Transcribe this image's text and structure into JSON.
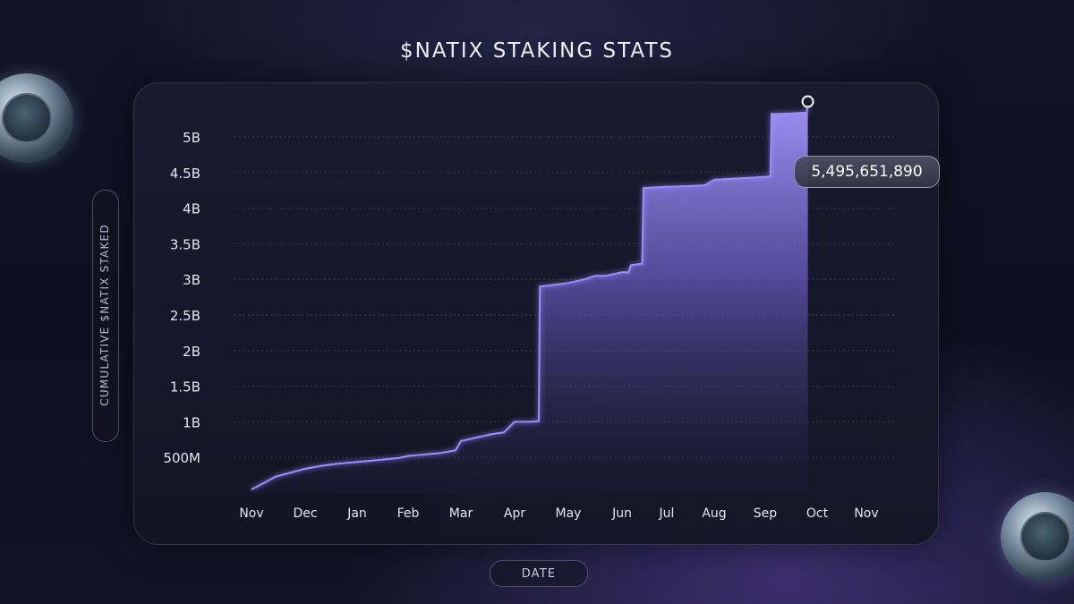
{
  "chart_data": {
    "type": "area",
    "title": "$NATIX STAKING STATS",
    "xlabel": "DATE",
    "ylabel": "CUMULATIVE $NATIX STAKED",
    "x_ticks": [
      "Nov",
      "Dec",
      "Jan",
      "Feb",
      "Mar",
      "Apr",
      "May",
      "Jun",
      "Jul",
      "Aug",
      "Sep",
      "Oct",
      "Nov"
    ],
    "y_ticks": [
      {
        "value": 500000000,
        "label": "500M"
      },
      {
        "value": 1000000000,
        "label": "1B"
      },
      {
        "value": 1500000000,
        "label": "1.5B"
      },
      {
        "value": 2000000000,
        "label": "2B"
      },
      {
        "value": 2500000000,
        "label": "2.5B"
      },
      {
        "value": 3000000000,
        "label": "3B"
      },
      {
        "value": 3500000000,
        "label": "3.5B"
      },
      {
        "value": 4000000000,
        "label": "4B"
      },
      {
        "value": 4500000000,
        "label": "4.5B"
      },
      {
        "value": 5000000000,
        "label": "5B"
      }
    ],
    "ylim": [
      0,
      5500000000
    ],
    "grid": true,
    "x_unit": "months since first Nov tick",
    "series": [
      {
        "name": "Cumulative $NATIX staked",
        "x": [
          0,
          0.25,
          0.45,
          0.75,
          1.0,
          1.3,
          1.6,
          1.9,
          2.2,
          2.5,
          2.8,
          3.0,
          3.3,
          3.6,
          3.9,
          4.0,
          4.3,
          4.6,
          4.8,
          5.0,
          5.3,
          5.45,
          5.47,
          5.7,
          6.0,
          6.3,
          6.5,
          6.7,
          7.0,
          7.15,
          7.2,
          7.45,
          7.48,
          7.7,
          8.0,
          8.5,
          8.8,
          9.0,
          9.5,
          9.8,
          10.0,
          10.1,
          10.12,
          10.5,
          10.8,
          10.82
        ],
        "y": [
          50000000,
          150000000,
          230000000,
          290000000,
          340000000,
          380000000,
          410000000,
          430000000,
          450000000,
          470000000,
          490000000,
          520000000,
          540000000,
          560000000,
          600000000,
          730000000,
          780000000,
          830000000,
          850000000,
          1000000000,
          1000000000,
          1010000000,
          2900000000,
          2920000000,
          2950000000,
          3000000000,
          3050000000,
          3050000000,
          3100000000,
          3100000000,
          3200000000,
          3220000000,
          4280000000,
          4290000000,
          4300000000,
          4310000000,
          4320000000,
          4400000000,
          4420000000,
          4430000000,
          4440000000,
          4450000000,
          5320000000,
          5330000000,
          5340000000,
          5495651890
        ]
      }
    ],
    "highlight": {
      "label": "5,495,651,890",
      "value": 5495651890
    },
    "colors": {
      "line": "#9b8cff",
      "fill_top": "#8f7de8",
      "grid": "#4a4a66"
    }
  }
}
